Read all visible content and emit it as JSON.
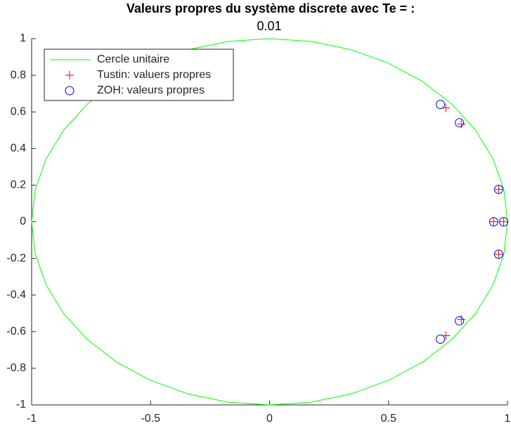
{
  "chart_data": {
    "type": "scatter",
    "title": "Valeurs propres du système discrete avec Te = :",
    "subtitle": "0.01",
    "xlim": [
      -1,
      1
    ],
    "xticks": [
      -1,
      -0.5,
      0,
      0.5,
      1
    ],
    "ylim": [
      -1,
      1
    ],
    "yticks": [
      -1,
      -0.8,
      -0.6,
      -0.4,
      -0.2,
      0,
      0.2,
      0.4,
      0.6,
      0.8,
      1
    ],
    "grid": false,
    "legend": "upper-left",
    "series": [
      {
        "name": "Cercle unitaire",
        "color": "#00ff00",
        "marker": "line",
        "x": [
          1,
          0.985,
          0.94,
          0.866,
          0.766,
          0.643,
          0.5,
          0.342,
          0.174,
          0,
          -0.174,
          -0.342,
          -0.5,
          -0.643,
          -0.766,
          -0.866,
          -0.94,
          -0.985,
          -1,
          -0.985,
          -0.94,
          -0.866,
          -0.766,
          -0.643,
          -0.5,
          -0.342,
          -0.174,
          0,
          0.174,
          0.342,
          0.5,
          0.643,
          0.766,
          0.866,
          0.94,
          0.985,
          1
        ],
        "values": [
          0,
          0.174,
          0.342,
          0.5,
          0.643,
          0.766,
          0.866,
          0.94,
          0.985,
          1,
          0.985,
          0.94,
          0.866,
          0.766,
          0.643,
          0.5,
          0.342,
          0.174,
          0,
          -0.174,
          -0.342,
          -0.5,
          -0.643,
          -0.766,
          -0.866,
          -0.94,
          -0.985,
          -1,
          -0.985,
          -0.94,
          -0.866,
          -0.766,
          -0.643,
          -0.5,
          -0.342,
          -0.174,
          0
        ]
      },
      {
        "name": "Tustin: valuers propres",
        "color": "#ff0000",
        "marker": "+",
        "x": [
          0.741,
          0.806,
          0.963,
          0.942,
          0.984,
          0.963,
          0.806,
          0.741
        ],
        "values": [
          0.622,
          0.534,
          0.177,
          0,
          0,
          -0.177,
          -0.534,
          -0.622
        ]
      },
      {
        "name": "ZOH: valeurs propres",
        "color": "#0000ff",
        "marker": "o",
        "x": [
          0.718,
          0.798,
          0.963,
          0.942,
          0.984,
          0.963,
          0.798,
          0.718
        ],
        "values": [
          0.641,
          0.541,
          0.177,
          0,
          0,
          -0.177,
          -0.541,
          -0.641
        ]
      }
    ]
  }
}
